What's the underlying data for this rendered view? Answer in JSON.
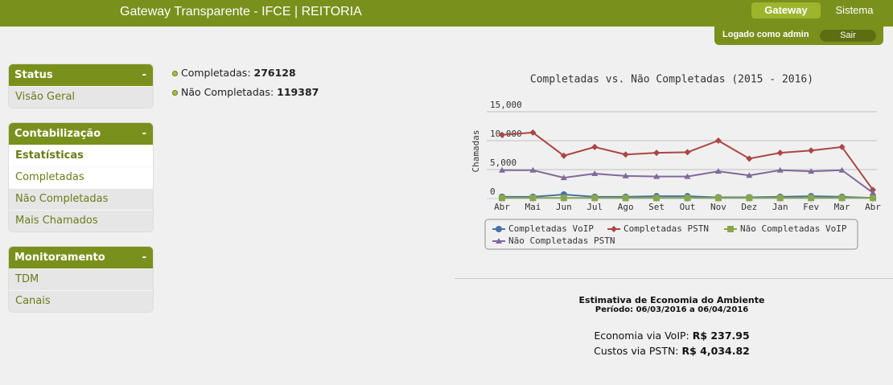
{
  "header": {
    "title": "Gateway Transparente - IFCE | REITORIA",
    "nav": [
      "Gateway",
      "Sistema"
    ],
    "user": "Logado como admin",
    "logout": "Sair"
  },
  "sidebar": [
    {
      "title": "Status",
      "toggle": "-",
      "items": [
        "Visão Geral"
      ]
    },
    {
      "title": "Contabilização",
      "toggle": "-",
      "items": [
        "Estatísticas",
        "Completadas",
        "Não Completadas",
        "Mais Chamados"
      ]
    },
    {
      "title": "Monitoramento",
      "toggle": "-",
      "items": [
        "TDM",
        "Canais"
      ]
    }
  ],
  "summary": [
    {
      "label": "Completadas:",
      "value": 276128
    },
    {
      "label": "Não Completadas:",
      "value": 119387
    }
  ],
  "chart_data": {
    "type": "line",
    "title": "Completadas vs. Não Completadas (2015 - 2016)",
    "y_label": "Chamadas",
    "categories": [
      "Abr",
      "Mai",
      "Jun",
      "Jul",
      "Ago",
      "Set",
      "Out",
      "Nov",
      "Dez",
      "Jan",
      "Fev",
      "Mar",
      "Abr"
    ],
    "ylim": [
      0,
      15000
    ],
    "yticks": [
      0,
      {
        "value": 5000,
        "label": "5,000"
      },
      {
        "value": 10000,
        "label": "10,000"
      },
      {
        "value": 15000,
        "label": "15,000"
      }
    ],
    "grid": true,
    "legend": "bottom",
    "series": [
      {
        "name": "Completadas VoIP",
        "color": "#4572a7",
        "marker": "circle",
        "values": [
          300,
          300,
          700,
          300,
          300,
          400,
          400,
          200,
          200,
          300,
          400,
          300,
          100
        ]
      },
      {
        "name": "Completadas PSTN",
        "color": "#aa4643",
        "marker": "diamond",
        "values": [
          11000,
          11400,
          7400,
          8900,
          7600,
          7900,
          8000,
          10000,
          6900,
          7900,
          8300,
          8900,
          1500
        ]
      },
      {
        "name": "Não Completadas VoIP",
        "color": "#89a54e",
        "marker": "square",
        "values": [
          100,
          100,
          100,
          100,
          100,
          100,
          100,
          100,
          100,
          100,
          100,
          100,
          100
        ]
      },
      {
        "name": "Não Completadas PSTN",
        "color": "#80699b",
        "marker": "triangle",
        "values": [
          4900,
          4900,
          3600,
          4300,
          3900,
          3800,
          3800,
          4700,
          4000,
          4900,
          4700,
          4900,
          1000
        ]
      }
    ]
  },
  "economy": {
    "title": "Estimativa de Economia do Ambiente",
    "period": "Período: 06/03/2016 a 06/04/2016",
    "lines": [
      {
        "label": "Economia via VoIP:",
        "value": "R$ 237.95"
      },
      {
        "label": "Custos via PSTN:",
        "value": "R$ 4,034.82"
      }
    ]
  }
}
